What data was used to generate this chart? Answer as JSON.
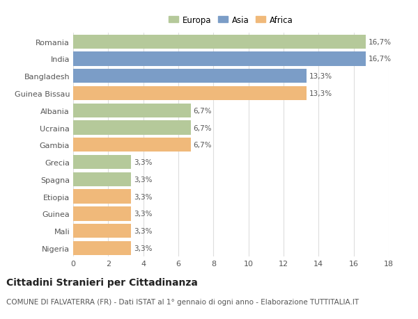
{
  "countries": [
    "Romania",
    "India",
    "Bangladesh",
    "Guinea Bissau",
    "Albania",
    "Ucraina",
    "Gambia",
    "Grecia",
    "Spagna",
    "Etiopia",
    "Guinea",
    "Mali",
    "Nigeria"
  ],
  "values": [
    16.7,
    16.7,
    13.3,
    13.3,
    6.7,
    6.7,
    6.7,
    3.3,
    3.3,
    3.3,
    3.3,
    3.3,
    3.3
  ],
  "labels": [
    "16,7%",
    "16,7%",
    "13,3%",
    "13,3%",
    "6,7%",
    "6,7%",
    "6,7%",
    "3,3%",
    "3,3%",
    "3,3%",
    "3,3%",
    "3,3%",
    "3,3%"
  ],
  "continents": [
    "Europa",
    "Asia",
    "Asia",
    "Africa",
    "Europa",
    "Europa",
    "Africa",
    "Europa",
    "Europa",
    "Africa",
    "Africa",
    "Africa",
    "Africa"
  ],
  "colors": {
    "Europa": "#b5c99a",
    "Asia": "#7b9dc7",
    "Africa": "#f0b97a"
  },
  "legend_order": [
    "Europa",
    "Asia",
    "Africa"
  ],
  "xlim": [
    0,
    18
  ],
  "xticks": [
    0,
    2,
    4,
    6,
    8,
    10,
    12,
    14,
    16,
    18
  ],
  "title": "Cittadini Stranieri per Cittadinanza",
  "subtitle": "COMUNE DI FALVATERRA (FR) - Dati ISTAT al 1° gennaio di ogni anno - Elaborazione TUTTITALIA.IT",
  "background_color": "#ffffff",
  "grid_color": "#dddddd",
  "bar_height": 0.82,
  "title_fontsize": 10,
  "subtitle_fontsize": 7.5,
  "label_fontsize": 7.5,
  "ytick_fontsize": 8,
  "xtick_fontsize": 8,
  "legend_fontsize": 8.5
}
